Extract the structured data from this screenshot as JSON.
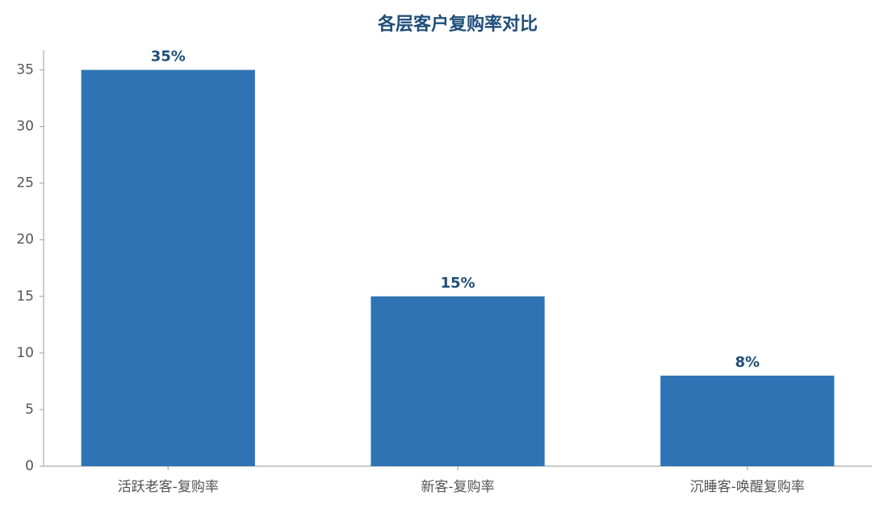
{
  "chart_data": {
    "type": "bar",
    "title": "各层客户复购率对比",
    "categories": [
      "活跃老客-复购率",
      "新客-复购率",
      "沉睡客-唤醒复购率"
    ],
    "values": [
      35,
      15,
      8
    ],
    "value_labels": [
      "35%",
      "15%",
      "8%"
    ],
    "color": "#2e74b5",
    "ylim": [
      0,
      36.75
    ],
    "yticks": [
      0,
      5,
      10,
      15,
      20,
      25,
      30,
      35
    ],
    "grid": false
  }
}
